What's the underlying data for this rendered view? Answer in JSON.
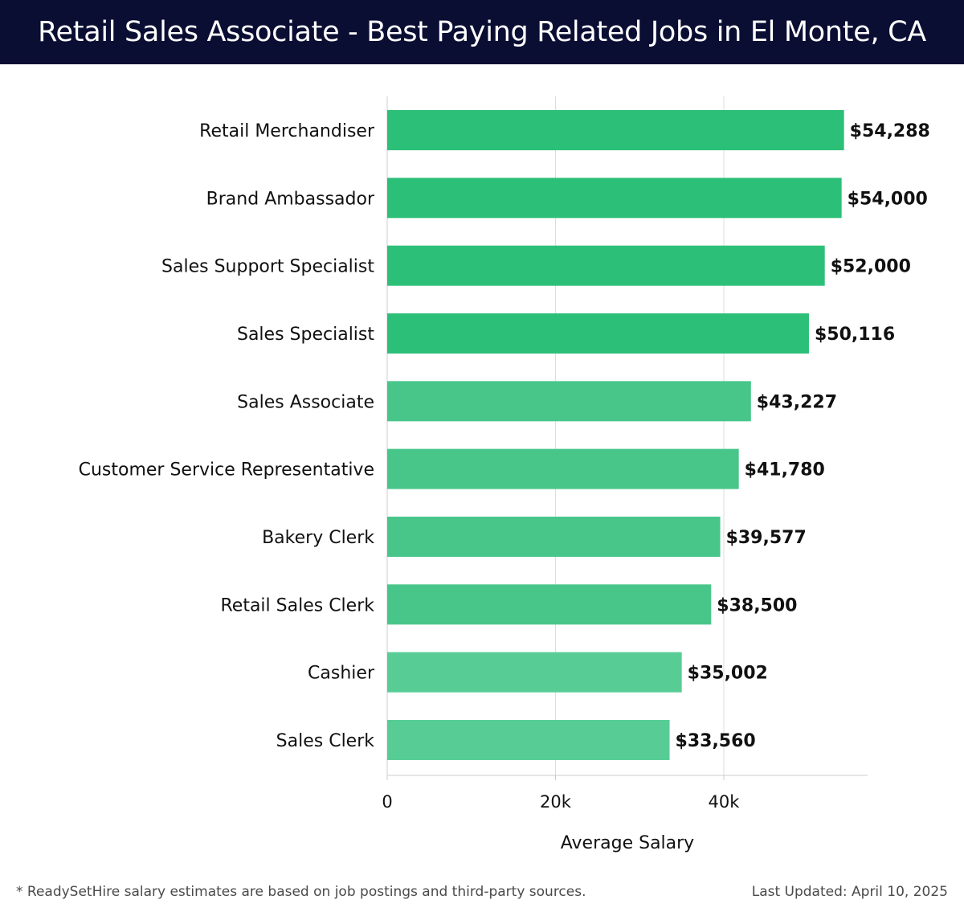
{
  "header": {
    "title": "Retail Sales Associate - Best Paying Related Jobs in El Monte, CA"
  },
  "chart_data": {
    "type": "bar",
    "orientation": "horizontal",
    "categories": [
      "Retail Merchandiser",
      "Brand Ambassador",
      "Sales Support Specialist",
      "Sales Specialist",
      "Sales Associate",
      "Customer Service Representative",
      "Bakery Clerk",
      "Retail Sales Clerk",
      "Cashier",
      "Sales Clerk"
    ],
    "values": [
      54288,
      54000,
      52000,
      50116,
      43227,
      41780,
      39577,
      38500,
      35002,
      33560
    ],
    "value_labels": [
      "$54,288",
      "$54,000",
      "$52,000",
      "$50,116",
      "$43,227",
      "$41,780",
      "$39,577",
      "$38,500",
      "$35,002",
      "$33,560"
    ],
    "xlabel": "Average Salary",
    "xlim": [
      0,
      57000
    ],
    "xticks": [
      0,
      20000,
      40000
    ],
    "xtick_labels": [
      "0",
      "20k",
      "40k"
    ],
    "grid": true,
    "colors": {
      "top": "#2cbf78",
      "mid": "#48c68a",
      "low": "#57cd95",
      "grid": "#dddddd",
      "axis": "#cccccc",
      "text": "#111111"
    }
  },
  "footer": {
    "note": "* ReadySetHire salary estimates are based on job postings and third-party sources.",
    "updated": "Last Updated: April 10, 2025"
  }
}
